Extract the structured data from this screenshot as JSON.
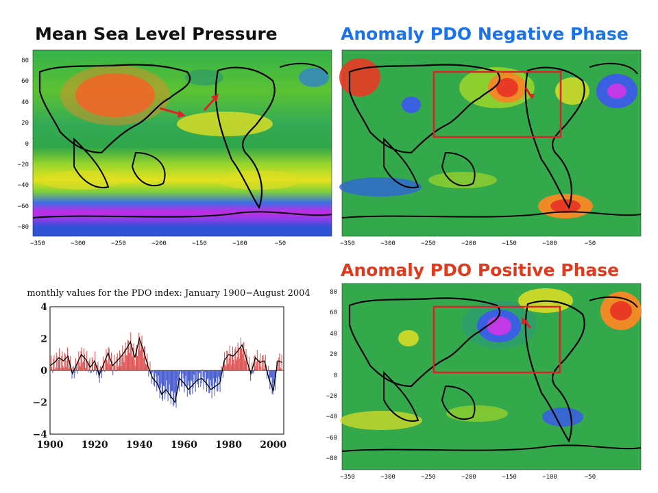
{
  "titles": {
    "mslp": "Mean Sea Level Pressure",
    "negative": "Anomaly PDO Negative Phase",
    "positive": "Anomaly PDO Positive Phase"
  },
  "colors": {
    "title_dark": "#111111",
    "title_blue": "#1a73e8",
    "title_red": "#e03a1e",
    "highlight_box": "#e0202a",
    "arrow": "#e0202a"
  },
  "map_axes": {
    "lat_ticks": [
      "80",
      "60",
      "40",
      "20",
      "0",
      "−20",
      "−40",
      "−60",
      "−80"
    ],
    "lon_ticks": [
      "−350",
      "−300",
      "−250",
      "−200",
      "−150",
      "−100",
      "−50"
    ]
  },
  "chart_data": {
    "type": "area",
    "title": "monthly values for the PDO index: January 1900−August 2004",
    "x_ticks": [
      "1900",
      "1920",
      "1940",
      "1960",
      "1980",
      "2000"
    ],
    "y_ticks": [
      "4",
      "2",
      "0",
      "−2",
      "−4"
    ],
    "xlim": [
      1900,
      2004.7
    ],
    "ylim": [
      -4,
      4
    ],
    "positive_color": "#e05555",
    "negative_color": "#4a5ed0",
    "annual_x": [
      1900,
      1902,
      1904,
      1906,
      1908,
      1910,
      1912,
      1914,
      1916,
      1918,
      1920,
      1922,
      1924,
      1926,
      1928,
      1930,
      1932,
      1934,
      1936,
      1938,
      1940,
      1942,
      1944,
      1946,
      1948,
      1950,
      1952,
      1954,
      1956,
      1958,
      1960,
      1962,
      1964,
      1966,
      1968,
      1970,
      1972,
      1974,
      1976,
      1978,
      1980,
      1982,
      1984,
      1986,
      1988,
      1990,
      1992,
      1994,
      1996,
      1998,
      2000,
      2002,
      2004
    ],
    "annual_y": [
      0.3,
      0.5,
      0.8,
      0.6,
      0.9,
      -0.2,
      0.4,
      1.0,
      0.7,
      0.2,
      0.6,
      -0.3,
      0.4,
      1.1,
      0.3,
      0.6,
      0.9,
      1.3,
      1.8,
      0.8,
      2.0,
      1.2,
      0.2,
      -0.5,
      -0.8,
      -1.5,
      -1.2,
      -1.6,
      -2.0,
      -0.5,
      -0.8,
      -1.2,
      -0.9,
      -0.6,
      -0.5,
      -0.8,
      -1.2,
      -1.0,
      -0.8,
      0.6,
      1.0,
      0.9,
      1.2,
      1.6,
      0.7,
      -0.2,
      0.8,
      0.5,
      0.6,
      -0.5,
      -1.3,
      0.6,
      0.5
    ]
  }
}
